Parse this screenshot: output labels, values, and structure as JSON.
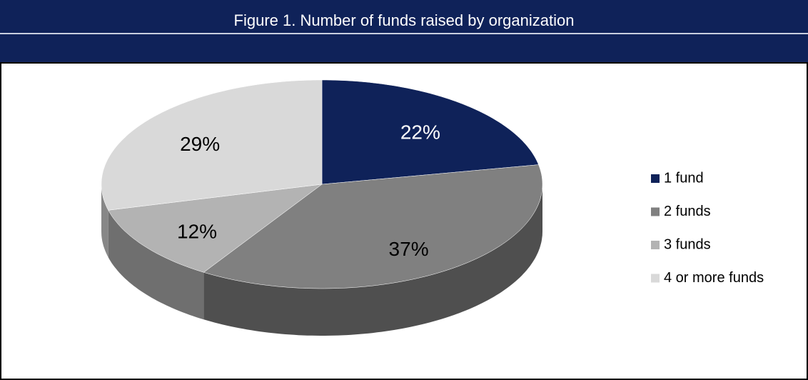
{
  "chart_data": {
    "type": "pie",
    "title": "Figure 1. Number of funds raised by organization",
    "categories": [
      "1 fund",
      "2 funds",
      "3 funds",
      "4 or more funds"
    ],
    "values": [
      22,
      37,
      12,
      29
    ],
    "value_labels": [
      "22%",
      "37%",
      "12%",
      "29%"
    ],
    "colors": [
      "#0f2259",
      "#808080",
      "#b3b3b3",
      "#d9d9d9"
    ],
    "legend": "right"
  }
}
